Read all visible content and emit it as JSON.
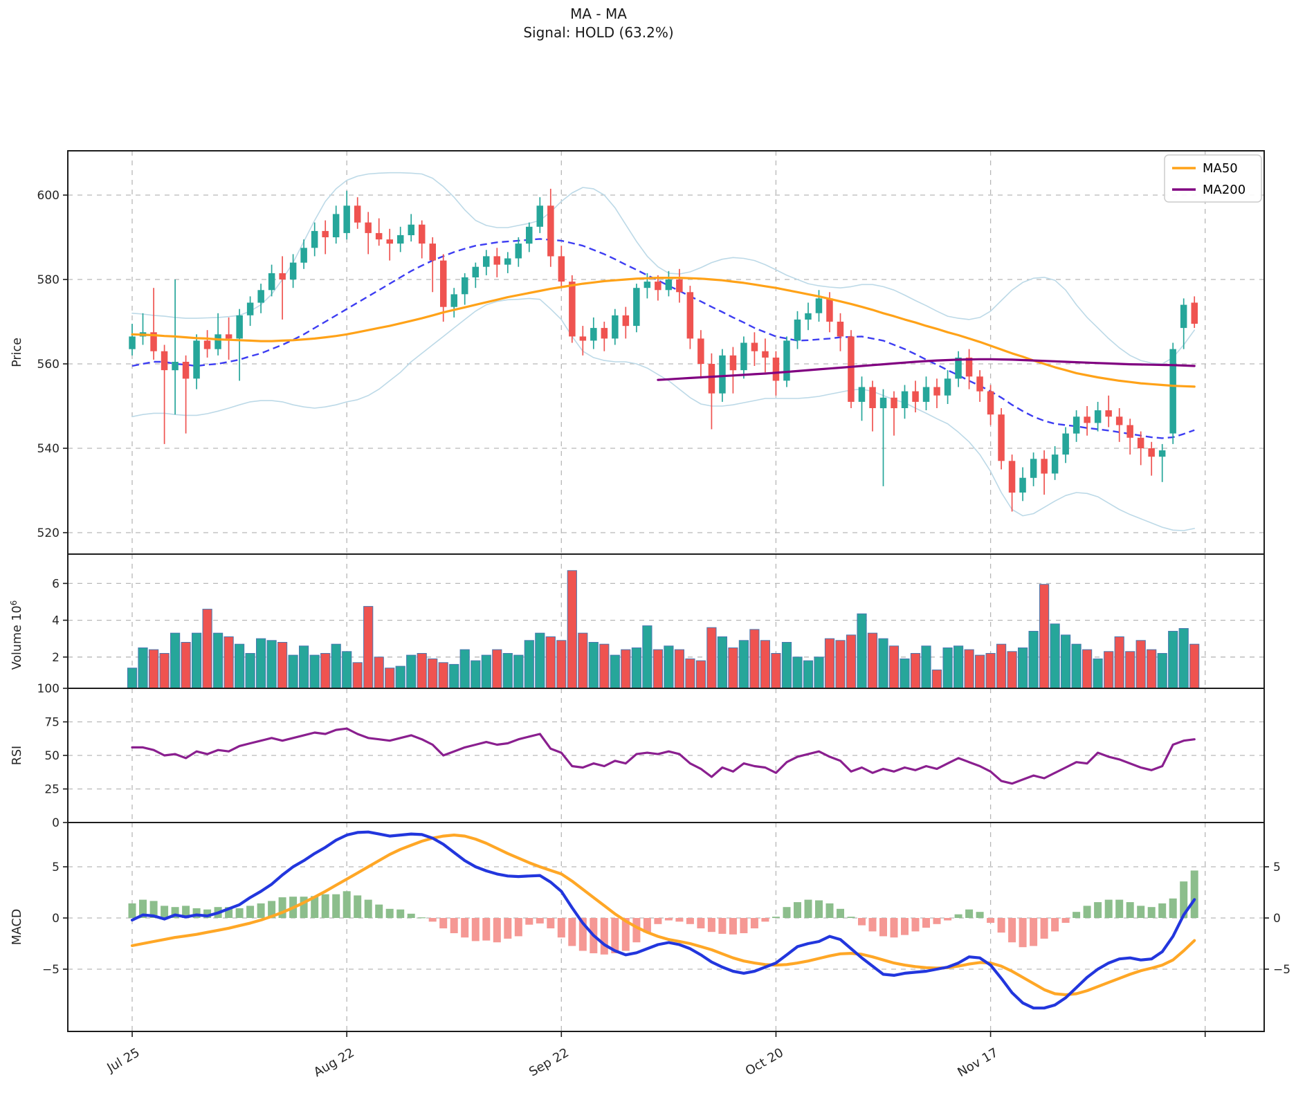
{
  "title": {
    "line1": "MA - MA",
    "line2": "Signal: HOLD (63.2%)"
  },
  "legend": {
    "items": [
      {
        "label": "MA50",
        "color": "#ffa218"
      },
      {
        "label": "MA200",
        "color": "#800080"
      }
    ]
  },
  "colors": {
    "candle_up": "#26a69a",
    "candle_down": "#ef5350",
    "volume_edge": "#4878b0",
    "bb_band": "#bcd9e7",
    "bb_mid": "#3d3df2",
    "ma50": "#ffa218",
    "ma200": "#800080",
    "rsi": "#8a1f8f",
    "macd_line": "#2236dd",
    "macd_signal": "#ffa726",
    "hist_up": "#8cbe8c",
    "hist_down": "#f59894",
    "grid": "#b7b7b7",
    "spine": "#1c1c1c",
    "text": "#262626"
  },
  "axes": {
    "price": {
      "label": "Price",
      "ticks": [
        520,
        540,
        560,
        580,
        600
      ]
    },
    "volume": {
      "label": "Volume",
      "exponent": "10",
      "exponent_sup": "6",
      "ticks": [
        2,
        4,
        6
      ]
    },
    "rsi": {
      "label": "RSI",
      "ticks": [
        0,
        25,
        50,
        75,
        100
      ]
    },
    "macd": {
      "label": "MACD",
      "ticks_left": [
        "5",
        "0",
        "−5"
      ],
      "ticks_right": [
        "5",
        "0",
        "−5"
      ],
      "tick_values": [
        5,
        0,
        -5
      ]
    }
  },
  "x_axis": {
    "tick_labels": [
      "Jul 25",
      "Aug 22",
      "Sep 22",
      "Oct 20",
      "Nov 17"
    ],
    "tick_indices": [
      0,
      20,
      40,
      60,
      80
    ],
    "extra_gridline_index": 100
  },
  "chart_data": {
    "type": "candlestick",
    "title": "MA - MA  |  Signal: HOLD (63.2%)",
    "n_points": 100,
    "x_tick_labels": [
      "Jul 25",
      "Aug 22",
      "Sep 22",
      "Oct 20",
      "Nov 17"
    ],
    "x_tick_indices": [
      0,
      20,
      40,
      60,
      80
    ],
    "price_ylim": [
      515,
      610.5
    ],
    "volume_ylim_millions": [
      0.3,
      7.5
    ],
    "rsi_ylim": [
      0,
      100
    ],
    "macd_ylim": [
      -11.2,
      9.2
    ],
    "open": [
      563.5,
      566.5,
      567.5,
      563.0,
      558.5,
      560.5,
      556.5,
      565.5,
      563.5,
      567.0,
      566.0,
      571.5,
      574.5,
      577.5,
      581.5,
      580.0,
      584.0,
      587.5,
      591.5,
      590.0,
      591.0,
      597.5,
      593.5,
      591.0,
      589.5,
      588.5,
      590.5,
      593.0,
      588.5,
      584.5,
      573.5,
      576.5,
      580.5,
      583.0,
      585.5,
      583.5,
      585.0,
      588.5,
      592.5,
      597.5,
      585.5,
      579.5,
      566.5,
      565.5,
      568.5,
      566.0,
      571.5,
      569.0,
      578.0,
      579.5,
      577.5,
      580.0,
      577.0,
      566.0,
      560.0,
      553.0,
      562.0,
      558.5,
      565.0,
      563.0,
      561.5,
      556.0,
      565.5,
      570.5,
      572.0,
      575.5,
      570.0,
      566.5,
      551.0,
      554.5,
      549.5,
      552.0,
      549.5,
      553.5,
      551.0,
      554.5,
      552.5,
      556.5,
      561.5,
      557.0,
      553.5,
      548.0,
      537.0,
      529.5,
      533.0,
      537.5,
      534.0,
      538.5,
      543.5,
      547.5,
      546.0,
      549.0,
      547.5,
      545.5,
      542.5,
      540.0,
      538.0,
      543.5,
      568.5,
      574.5
    ],
    "high": [
      569.5,
      572.0,
      578.0,
      564.5,
      580.0,
      562.0,
      567.0,
      568.0,
      572.0,
      571.0,
      573.0,
      576.0,
      579.0,
      583.5,
      585.5,
      586.0,
      589.5,
      593.5,
      594.0,
      597.5,
      601.0,
      599.5,
      596.0,
      594.5,
      592.0,
      592.5,
      595.5,
      594.0,
      590.0,
      586.0,
      578.0,
      581.5,
      584.0,
      587.0,
      587.5,
      586.5,
      590.0,
      593.5,
      599.5,
      601.5,
      588.0,
      581.0,
      569.0,
      571.0,
      570.0,
      573.0,
      573.5,
      579.0,
      581.5,
      581.0,
      582.0,
      582.5,
      578.5,
      568.0,
      562.5,
      563.5,
      564.0,
      566.5,
      567.5,
      566.0,
      563.0,
      566.5,
      572.5,
      574.5,
      577.5,
      577.0,
      572.0,
      568.0,
      557.0,
      556.0,
      554.0,
      553.5,
      555.0,
      556.0,
      557.0,
      556.5,
      558.5,
      563.0,
      563.5,
      558.5,
      555.0,
      549.5,
      538.5,
      535.5,
      539.0,
      539.5,
      540.5,
      545.0,
      549.0,
      550.0,
      551.0,
      552.5,
      549.5,
      547.0,
      544.0,
      541.5,
      541.0,
      565.0,
      575.5,
      576.0
    ],
    "low": [
      562.0,
      564.5,
      561.0,
      541.0,
      548.0,
      543.5,
      554.0,
      561.5,
      562.0,
      561.0,
      556.0,
      569.0,
      572.0,
      576.0,
      570.5,
      578.0,
      582.5,
      585.5,
      586.0,
      588.5,
      589.5,
      592.0,
      586.0,
      588.0,
      584.5,
      586.5,
      589.0,
      585.0,
      577.0,
      570.0,
      571.0,
      574.0,
      578.0,
      581.0,
      580.5,
      581.5,
      583.0,
      586.5,
      591.0,
      583.0,
      578.0,
      565.0,
      562.0,
      563.5,
      563.0,
      564.5,
      566.0,
      567.5,
      575.5,
      575.0,
      576.0,
      574.5,
      563.5,
      556.5,
      544.5,
      551.0,
      553.0,
      556.5,
      559.5,
      558.0,
      552.5,
      554.5,
      563.5,
      568.0,
      570.0,
      567.5,
      563.0,
      549.5,
      546.5,
      544.0,
      531.0,
      543.0,
      547.0,
      548.5,
      549.0,
      549.5,
      550.5,
      554.5,
      554.0,
      551.0,
      545.5,
      535.0,
      525.0,
      527.5,
      531.0,
      529.0,
      532.5,
      536.5,
      541.5,
      543.0,
      544.0,
      545.0,
      541.5,
      538.5,
      536.0,
      533.5,
      532.0,
      541.0,
      563.5,
      568.5
    ],
    "close": [
      566.5,
      567.5,
      563.0,
      558.5,
      560.5,
      556.5,
      565.5,
      563.5,
      567.0,
      566.0,
      571.5,
      574.5,
      577.5,
      581.5,
      580.0,
      584.0,
      587.5,
      591.5,
      590.0,
      595.5,
      597.5,
      593.5,
      591.0,
      589.5,
      588.5,
      590.5,
      593.0,
      588.5,
      584.5,
      573.5,
      576.5,
      580.5,
      583.0,
      585.5,
      583.5,
      585.0,
      588.5,
      592.5,
      597.5,
      585.5,
      579.5,
      566.5,
      565.5,
      568.5,
      566.0,
      571.5,
      569.0,
      578.0,
      579.5,
      577.5,
      580.0,
      577.0,
      566.0,
      560.0,
      553.0,
      562.0,
      558.5,
      565.0,
      563.0,
      561.5,
      556.0,
      565.5,
      570.5,
      572.0,
      575.5,
      570.0,
      566.5,
      551.0,
      554.5,
      549.5,
      552.0,
      549.5,
      553.5,
      551.0,
      554.5,
      552.5,
      556.5,
      561.5,
      557.0,
      553.5,
      548.0,
      537.0,
      529.5,
      533.0,
      537.5,
      534.0,
      538.5,
      543.5,
      547.5,
      546.0,
      549.0,
      547.5,
      545.5,
      542.5,
      540.0,
      538.0,
      539.5,
      563.5,
      574.0,
      569.5
    ],
    "volume_millions": [
      1.4,
      2.5,
      2.4,
      2.2,
      3.3,
      2.8,
      3.3,
      4.6,
      3.3,
      3.1,
      2.7,
      2.2,
      3.0,
      2.9,
      2.8,
      2.1,
      2.6,
      2.1,
      2.2,
      2.7,
      2.3,
      1.7,
      4.75,
      2.0,
      1.4,
      1.5,
      2.1,
      2.2,
      1.9,
      1.7,
      1.6,
      2.4,
      1.8,
      2.1,
      2.4,
      2.2,
      2.1,
      2.9,
      3.3,
      3.1,
      2.9,
      6.7,
      3.3,
      2.8,
      2.7,
      2.1,
      2.4,
      2.5,
      3.7,
      2.4,
      2.6,
      2.4,
      1.9,
      1.8,
      3.6,
      3.1,
      2.5,
      2.9,
      3.5,
      2.9,
      2.2,
      2.8,
      2.0,
      1.8,
      2.0,
      3.0,
      2.9,
      3.2,
      4.35,
      3.3,
      3.0,
      2.6,
      1.9,
      2.2,
      2.6,
      1.3,
      2.5,
      2.6,
      2.4,
      2.1,
      2.2,
      2.7,
      2.3,
      2.5,
      3.4,
      5.95,
      3.8,
      3.2,
      2.7,
      2.4,
      1.9,
      2.3,
      3.1,
      2.3,
      2.9,
      2.4,
      2.2,
      3.4,
      3.55,
      2.7
    ],
    "bb_upper": [
      572.0,
      571.8,
      571.5,
      571.3,
      571.0,
      570.8,
      570.8,
      570.9,
      571.0,
      571.2,
      571.5,
      572.5,
      574.0,
      576.5,
      580.0,
      584.0,
      589.0,
      594.0,
      598.5,
      601.5,
      603.5,
      604.5,
      605.0,
      605.2,
      605.3,
      605.3,
      605.2,
      605.0,
      604.0,
      602.0,
      599.5,
      596.5,
      594.0,
      592.8,
      592.3,
      592.3,
      592.8,
      593.3,
      594.0,
      596.0,
      598.5,
      600.5,
      601.8,
      601.5,
      600.0,
      597.0,
      593.0,
      589.0,
      585.5,
      583.0,
      581.5,
      581.3,
      581.8,
      582.8,
      584.0,
      584.8,
      585.2,
      585.0,
      584.5,
      583.5,
      582.3,
      581.0,
      580.0,
      579.0,
      578.5,
      578.2,
      578.0,
      578.3,
      578.8,
      578.8,
      578.3,
      577.5,
      576.3,
      575.0,
      573.8,
      572.5,
      571.3,
      570.8,
      570.5,
      571.0,
      572.5,
      575.0,
      577.5,
      579.3,
      580.3,
      580.5,
      579.8,
      577.5,
      574.0,
      571.0,
      568.5,
      566.0,
      563.8,
      562.0,
      560.8,
      560.2,
      560.0,
      561.5,
      564.5,
      568.0
    ],
    "bb_mid": [
      559.5,
      560.0,
      560.5,
      560.5,
      560.0,
      559.8,
      559.5,
      559.8,
      560.0,
      560.5,
      561.0,
      561.8,
      562.5,
      563.5,
      564.5,
      565.7,
      567.0,
      568.5,
      570.0,
      571.5,
      573.0,
      574.5,
      576.0,
      577.5,
      579.0,
      580.5,
      582.0,
      583.3,
      584.5,
      585.5,
      586.5,
      587.3,
      588.0,
      588.4,
      588.8,
      589.0,
      589.2,
      589.4,
      589.6,
      589.4,
      589.2,
      588.6,
      588.0,
      587.0,
      586.0,
      584.8,
      583.5,
      582.3,
      581.0,
      579.8,
      578.5,
      577.3,
      576.0,
      574.8,
      573.5,
      572.3,
      571.0,
      569.8,
      568.5,
      567.5,
      566.5,
      566.0,
      565.5,
      565.6,
      565.8,
      566.0,
      566.3,
      566.4,
      566.5,
      566.0,
      565.5,
      564.5,
      563.5,
      562.3,
      561.0,
      559.8,
      558.5,
      557.3,
      556.0,
      554.8,
      553.5,
      552.0,
      550.3,
      548.8,
      547.5,
      546.5,
      545.8,
      545.5,
      545.2,
      544.8,
      544.5,
      544.2,
      543.8,
      543.4,
      543.0,
      542.6,
      542.4,
      542.6,
      543.4,
      544.3
    ],
    "bb_lower": [
      547.5,
      548.0,
      548.3,
      548.3,
      548.0,
      547.8,
      547.8,
      548.2,
      548.8,
      549.5,
      550.3,
      551.0,
      551.3,
      551.3,
      551.0,
      550.3,
      549.8,
      549.5,
      549.8,
      550.3,
      551.0,
      551.5,
      552.5,
      554.0,
      556.0,
      558.0,
      560.5,
      562.5,
      564.5,
      566.5,
      568.5,
      570.5,
      572.5,
      574.0,
      574.8,
      575.2,
      575.3,
      575.5,
      575.3,
      573.0,
      570.5,
      566.5,
      563.0,
      561.5,
      560.8,
      560.5,
      560.5,
      560.0,
      559.0,
      557.5,
      556.0,
      554.0,
      552.0,
      550.5,
      550.0,
      550.0,
      550.3,
      550.8,
      551.3,
      551.8,
      551.8,
      551.8,
      551.8,
      552.0,
      552.3,
      552.8,
      553.3,
      553.8,
      554.0,
      553.5,
      552.5,
      551.5,
      550.8,
      549.5,
      548.3,
      547.0,
      545.8,
      543.8,
      541.5,
      538.5,
      534.5,
      529.5,
      525.5,
      524.0,
      524.5,
      526.0,
      527.5,
      528.8,
      529.5,
      529.3,
      528.5,
      527.0,
      525.5,
      524.3,
      523.3,
      522.3,
      521.3,
      520.6,
      520.5,
      521.0
    ],
    "ma50": [
      567.0,
      566.9,
      566.8,
      566.6,
      566.5,
      566.3,
      566.1,
      566.0,
      565.8,
      565.7,
      565.6,
      565.5,
      565.4,
      565.4,
      565.5,
      565.6,
      565.8,
      566.0,
      566.3,
      566.6,
      567.0,
      567.5,
      568.0,
      568.5,
      569.0,
      569.6,
      570.2,
      570.8,
      571.5,
      572.2,
      572.8,
      573.4,
      574.0,
      574.6,
      575.2,
      575.8,
      576.3,
      576.8,
      577.3,
      577.8,
      578.2,
      578.6,
      579.0,
      579.3,
      579.6,
      579.8,
      580.0,
      580.2,
      580.3,
      580.4,
      580.4,
      580.4,
      580.3,
      580.2,
      580.0,
      579.8,
      579.5,
      579.2,
      578.8,
      578.4,
      578.0,
      577.5,
      577.0,
      576.5,
      576.0,
      575.4,
      574.8,
      574.2,
      573.5,
      572.8,
      572.0,
      571.3,
      570.5,
      569.8,
      569.0,
      568.3,
      567.5,
      566.8,
      566.0,
      565.2,
      564.3,
      563.4,
      562.5,
      561.7,
      560.8,
      560.0,
      559.2,
      558.5,
      557.8,
      557.3,
      556.8,
      556.4,
      556.0,
      555.7,
      555.4,
      555.2,
      555.0,
      554.8,
      554.7,
      554.6
    ],
    "ma200": [
      null,
      null,
      null,
      null,
      null,
      null,
      null,
      null,
      null,
      null,
      null,
      null,
      null,
      null,
      null,
      null,
      null,
      null,
      null,
      null,
      null,
      null,
      null,
      null,
      null,
      null,
      null,
      null,
      null,
      null,
      null,
      null,
      null,
      null,
      null,
      null,
      null,
      null,
      null,
      null,
      null,
      null,
      null,
      null,
      null,
      null,
      null,
      null,
      null,
      556.2,
      556.35,
      556.5,
      556.65,
      556.8,
      556.95,
      557.1,
      557.25,
      557.4,
      557.55,
      557.7,
      557.9,
      558.1,
      558.3,
      558.5,
      558.7,
      558.9,
      559.1,
      559.3,
      559.5,
      559.7,
      559.9,
      560.1,
      560.3,
      560.5,
      560.65,
      560.8,
      560.9,
      561.0,
      561.05,
      561.1,
      561.1,
      561.05,
      561.0,
      560.9,
      560.8,
      560.7,
      560.6,
      560.5,
      560.4,
      560.3,
      560.2,
      560.1,
      560.0,
      559.9,
      559.85,
      559.8,
      559.75,
      559.7,
      559.6,
      559.5
    ],
    "rsi": [
      56,
      56,
      54,
      50,
      51,
      48,
      53,
      51,
      54,
      53,
      57,
      59,
      61,
      63,
      61,
      63,
      65,
      67,
      66,
      69,
      70,
      66,
      63,
      62,
      61,
      63,
      65,
      62,
      58,
      50,
      53,
      56,
      58,
      60,
      58,
      59,
      62,
      64,
      66,
      55,
      52,
      42,
      41,
      44,
      42,
      46,
      44,
      51,
      52,
      51,
      53,
      51,
      44,
      40,
      34,
      41,
      38,
      44,
      42,
      41,
      37,
      45,
      49,
      51,
      53,
      49,
      46,
      38,
      41,
      37,
      40,
      38,
      41,
      39,
      42,
      40,
      44,
      48,
      45,
      42,
      38,
      31,
      29,
      32,
      35,
      33,
      37,
      41,
      45,
      44,
      52,
      49,
      47,
      44,
      41,
      39,
      42,
      58,
      61,
      62
    ],
    "macd": [
      -0.2,
      0.3,
      0.2,
      -0.1,
      0.3,
      0.1,
      0.3,
      0.2,
      0.5,
      0.9,
      1.3,
      2.0,
      2.6,
      3.3,
      4.2,
      5.0,
      5.6,
      6.3,
      6.9,
      7.6,
      8.1,
      8.35,
      8.4,
      8.2,
      8.0,
      8.1,
      8.2,
      8.15,
      7.8,
      7.2,
      6.4,
      5.6,
      5.0,
      4.6,
      4.3,
      4.1,
      4.05,
      4.1,
      4.15,
      3.5,
      2.6,
      1.0,
      -0.5,
      -1.7,
      -2.6,
      -3.2,
      -3.6,
      -3.4,
      -3.0,
      -2.6,
      -2.4,
      -2.6,
      -3.0,
      -3.6,
      -4.3,
      -4.8,
      -5.2,
      -5.4,
      -5.2,
      -4.8,
      -4.4,
      -3.6,
      -2.8,
      -2.5,
      -2.3,
      -1.8,
      -2.1,
      -3.0,
      -3.9,
      -4.7,
      -5.5,
      -5.6,
      -5.4,
      -5.3,
      -5.2,
      -5.0,
      -4.8,
      -4.4,
      -3.8,
      -3.9,
      -4.6,
      -5.9,
      -7.3,
      -8.3,
      -8.8,
      -8.8,
      -8.5,
      -7.8,
      -6.8,
      -5.8,
      -5.0,
      -4.4,
      -4.0,
      -3.9,
      -4.1,
      -4.0,
      -3.3,
      -1.8,
      0.3,
      1.8
    ],
    "macd_signal": [
      -2.7,
      -2.5,
      -2.3,
      -2.1,
      -1.9,
      -1.75,
      -1.6,
      -1.4,
      -1.2,
      -1.0,
      -0.75,
      -0.5,
      -0.2,
      0.15,
      0.55,
      1.0,
      1.5,
      2.05,
      2.6,
      3.2,
      3.8,
      4.4,
      5.0,
      5.6,
      6.2,
      6.7,
      7.1,
      7.5,
      7.8,
      8.0,
      8.1,
      8.0,
      7.7,
      7.3,
      6.8,
      6.3,
      5.85,
      5.4,
      5.0,
      4.65,
      4.3,
      3.6,
      2.8,
      2.0,
      1.2,
      0.4,
      -0.3,
      -0.9,
      -1.4,
      -1.8,
      -2.1,
      -2.3,
      -2.5,
      -2.8,
      -3.1,
      -3.5,
      -3.9,
      -4.2,
      -4.4,
      -4.55,
      -4.6,
      -4.55,
      -4.4,
      -4.2,
      -3.95,
      -3.7,
      -3.5,
      -3.45,
      -3.55,
      -3.8,
      -4.1,
      -4.4,
      -4.6,
      -4.75,
      -4.85,
      -4.9,
      -4.85,
      -4.7,
      -4.5,
      -4.35,
      -4.4,
      -4.7,
      -5.2,
      -5.8,
      -6.4,
      -7.0,
      -7.4,
      -7.5,
      -7.4,
      -7.1,
      -6.7,
      -6.3,
      -5.9,
      -5.5,
      -5.15,
      -4.9,
      -4.6,
      -4.1,
      -3.2,
      -2.2
    ],
    "macd_hist": [
      1.2,
      1.5,
      1.4,
      1.0,
      0.9,
      1.0,
      0.8,
      0.7,
      0.9,
      0.9,
      0.8,
      1.0,
      1.2,
      1.4,
      1.7,
      1.75,
      1.75,
      1.8,
      1.95,
      1.95,
      2.2,
      1.85,
      1.5,
      1.1,
      0.75,
      0.7,
      0.35,
      0.05,
      -0.3,
      -0.85,
      -1.25,
      -1.6,
      -1.9,
      -1.85,
      -2.0,
      -1.7,
      -1.5,
      -0.55,
      -0.45,
      -0.85,
      -1.6,
      -2.3,
      -2.7,
      -2.9,
      -3.0,
      -2.9,
      -2.7,
      -2.0,
      -1.2,
      -0.5,
      -0.2,
      -0.3,
      -0.5,
      -0.85,
      -1.15,
      -1.3,
      -1.35,
      -1.25,
      -0.85,
      -0.3,
      0.1,
      0.9,
      1.3,
      1.5,
      1.45,
      1.2,
      0.75,
      0.1,
      -0.6,
      -1.1,
      -1.5,
      -1.6,
      -1.4,
      -1.1,
      -0.8,
      -0.5,
      -0.2,
      0.3,
      0.7,
      0.5,
      -0.4,
      -1.2,
      -2.0,
      -2.4,
      -2.3,
      -1.7,
      -1.1,
      -0.4,
      0.5,
      1.0,
      1.3,
      1.5,
      1.5,
      1.3,
      1.0,
      0.9,
      1.2,
      1.6,
      3.0,
      3.9
    ]
  }
}
